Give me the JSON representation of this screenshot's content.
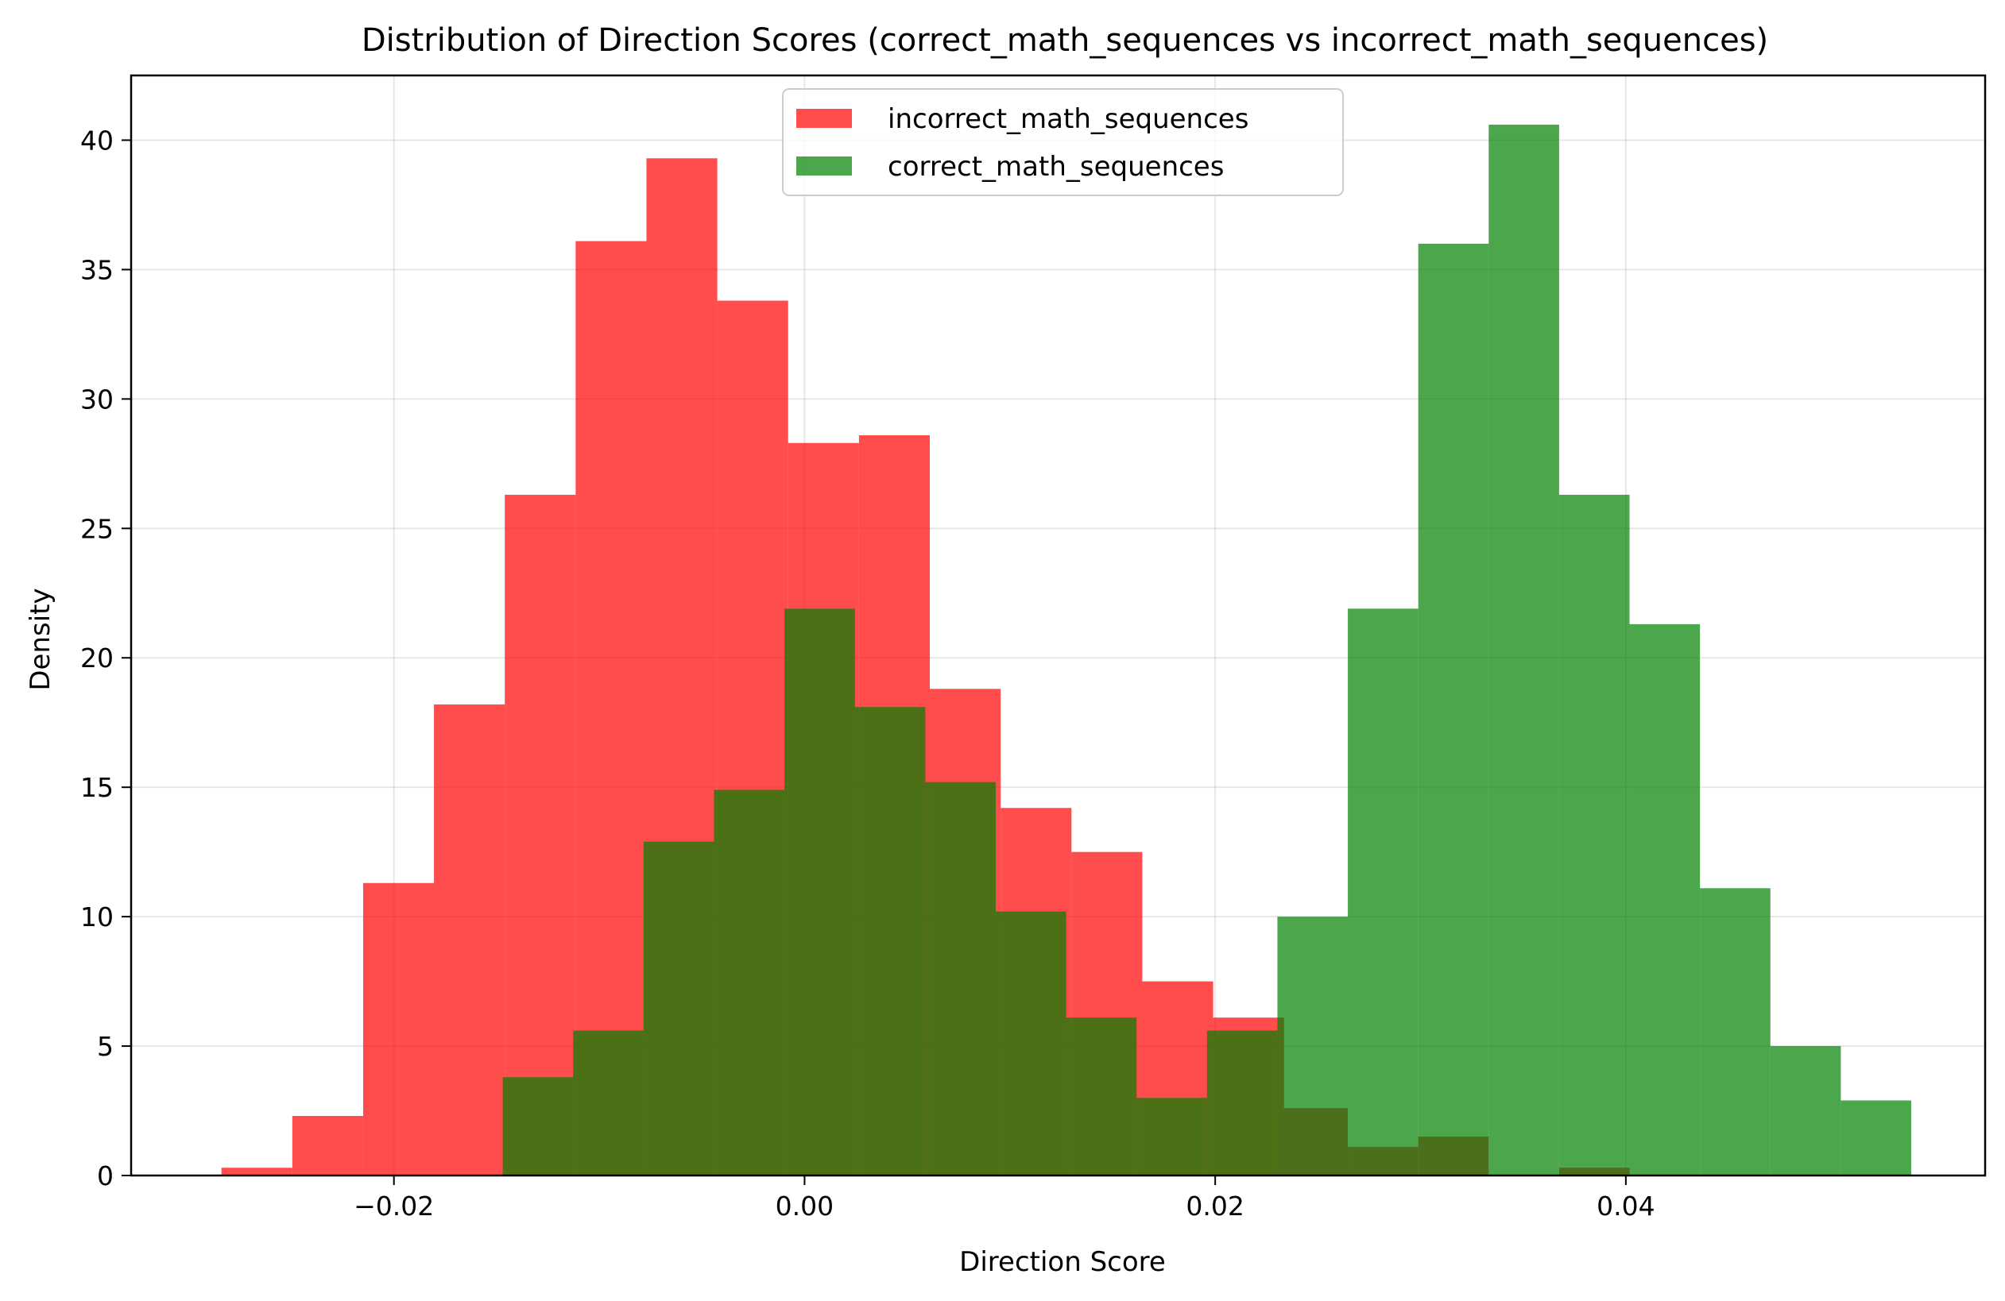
{
  "chart_data": {
    "type": "bar",
    "title": "Distribution of Direction Scores (correct_math_sequences vs incorrect_math_sequences)",
    "xlabel": "Direction Score",
    "ylabel": "Density",
    "xlim": [
      -0.0328,
      0.0575
    ],
    "ylim": [
      0,
      42.5
    ],
    "xticks": [
      {
        "value": -0.02,
        "label": "−0.02"
      },
      {
        "value": 0.0,
        "label": "0.00"
      },
      {
        "value": 0.02,
        "label": "0.02"
      },
      {
        "value": 0.04,
        "label": "0.04"
      }
    ],
    "yticks": [
      {
        "value": 0,
        "label": "0"
      },
      {
        "value": 5,
        "label": "5"
      },
      {
        "value": 10,
        "label": "10"
      },
      {
        "value": 15,
        "label": "15"
      },
      {
        "value": 20,
        "label": "20"
      },
      {
        "value": 25,
        "label": "25"
      },
      {
        "value": 30,
        "label": "30"
      },
      {
        "value": 35,
        "label": "35"
      },
      {
        "value": 40,
        "label": "40"
      }
    ],
    "grid": true,
    "legend_position": "upper center",
    "series": [
      {
        "name": "incorrect_math_sequences",
        "color": "#ff0000",
        "opacity": 0.7,
        "bin_edges": [
          -0.0284,
          -0.02495,
          -0.0215,
          -0.01805,
          -0.0146,
          -0.01115,
          -0.0077,
          -0.00425,
          -0.0008,
          0.00265,
          0.0061,
          0.00955,
          0.013,
          0.01645,
          0.0199,
          0.02335
        ],
        "values": [
          0.3,
          2.3,
          11.3,
          18.2,
          26.3,
          36.1,
          39.3,
          33.8,
          28.3,
          28.6,
          18.8,
          14.2,
          12.5,
          7.5,
          6.1
        ]
      },
      {
        "name": "correct_math_sequences",
        "color": "#008000",
        "opacity": 0.7,
        "bin_edges": [
          -0.0147,
          -0.01127,
          -0.00784,
          -0.00441,
          -0.00098,
          0.00245,
          0.00588,
          0.00931,
          0.01274,
          0.01617,
          0.0196,
          0.02303,
          0.02646,
          0.02989,
          0.03332,
          0.03675,
          0.04018,
          0.04361,
          0.04704,
          0.05047,
          0.0539
        ],
        "values": [
          3.8,
          5.6,
          12.9,
          14.9,
          21.9,
          18.1,
          15.2,
          10.2,
          6.1,
          3.0,
          5.6,
          10.0,
          21.9,
          36.0,
          40.6,
          26.3,
          21.3,
          11.1,
          5.0,
          2.9
        ]
      },
      {
        "name": "",
        "color": "#4b6f1a",
        "opacity": 1,
        "bin_edges": [
          0.02303,
          0.02646,
          0.02989,
          0.03332,
          0.03675,
          0.04018
        ],
        "values": [
          2.6,
          1.1,
          1.5,
          0,
          0.3
        ]
      }
    ]
  }
}
